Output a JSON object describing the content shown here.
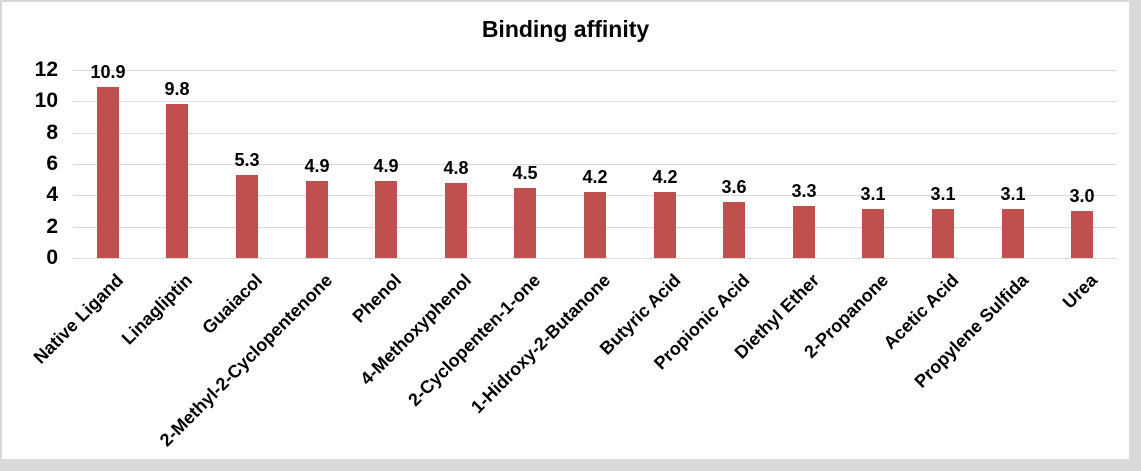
{
  "chart_data": {
    "type": "bar",
    "title": "Binding affinity",
    "categories": [
      "Native Ligand",
      "Linagliptin",
      "Guaiacol",
      "2-Methyl-2-Cyclopentenone",
      "Phenol",
      "4-Methoxyphenol",
      "2-Cyclopenten-1-one",
      "1-Hidroxy-2-Butanone",
      "Butyric Acid",
      "Propionic Acid",
      "Diethyl Ether",
      "2-Propanone",
      "Acetic Acid",
      "Propylene Sulfida",
      "Urea"
    ],
    "values": [
      10.9,
      9.8,
      5.3,
      4.9,
      4.9,
      4.8,
      4.5,
      4.2,
      4.2,
      3.6,
      3.3,
      3.1,
      3.1,
      3.1,
      3.0
    ],
    "value_labels": [
      "10.9",
      "9.8",
      "5.3",
      "4.9",
      "4.9",
      "4.8",
      "4.5",
      "4.2",
      "4.2",
      "3.6",
      "3.3",
      "3.1",
      "3.1",
      "3.1",
      "3.0"
    ],
    "xlabel": "",
    "ylabel": "",
    "ylim": [
      0,
      12
    ],
    "yticks": [
      0,
      2,
      4,
      6,
      8,
      10,
      12
    ],
    "ytick_labels": [
      "0",
      "2",
      "4",
      "6",
      "8",
      "10",
      "12"
    ],
    "grid": true,
    "legend": false,
    "x_label_rotation_deg": 45,
    "colors": {
      "bar": "#C0504D",
      "gridline": "#D9D9D9",
      "text": "#000000",
      "chart_background": "#FFFFFF",
      "outer_frame": "#D9D9D9"
    }
  }
}
